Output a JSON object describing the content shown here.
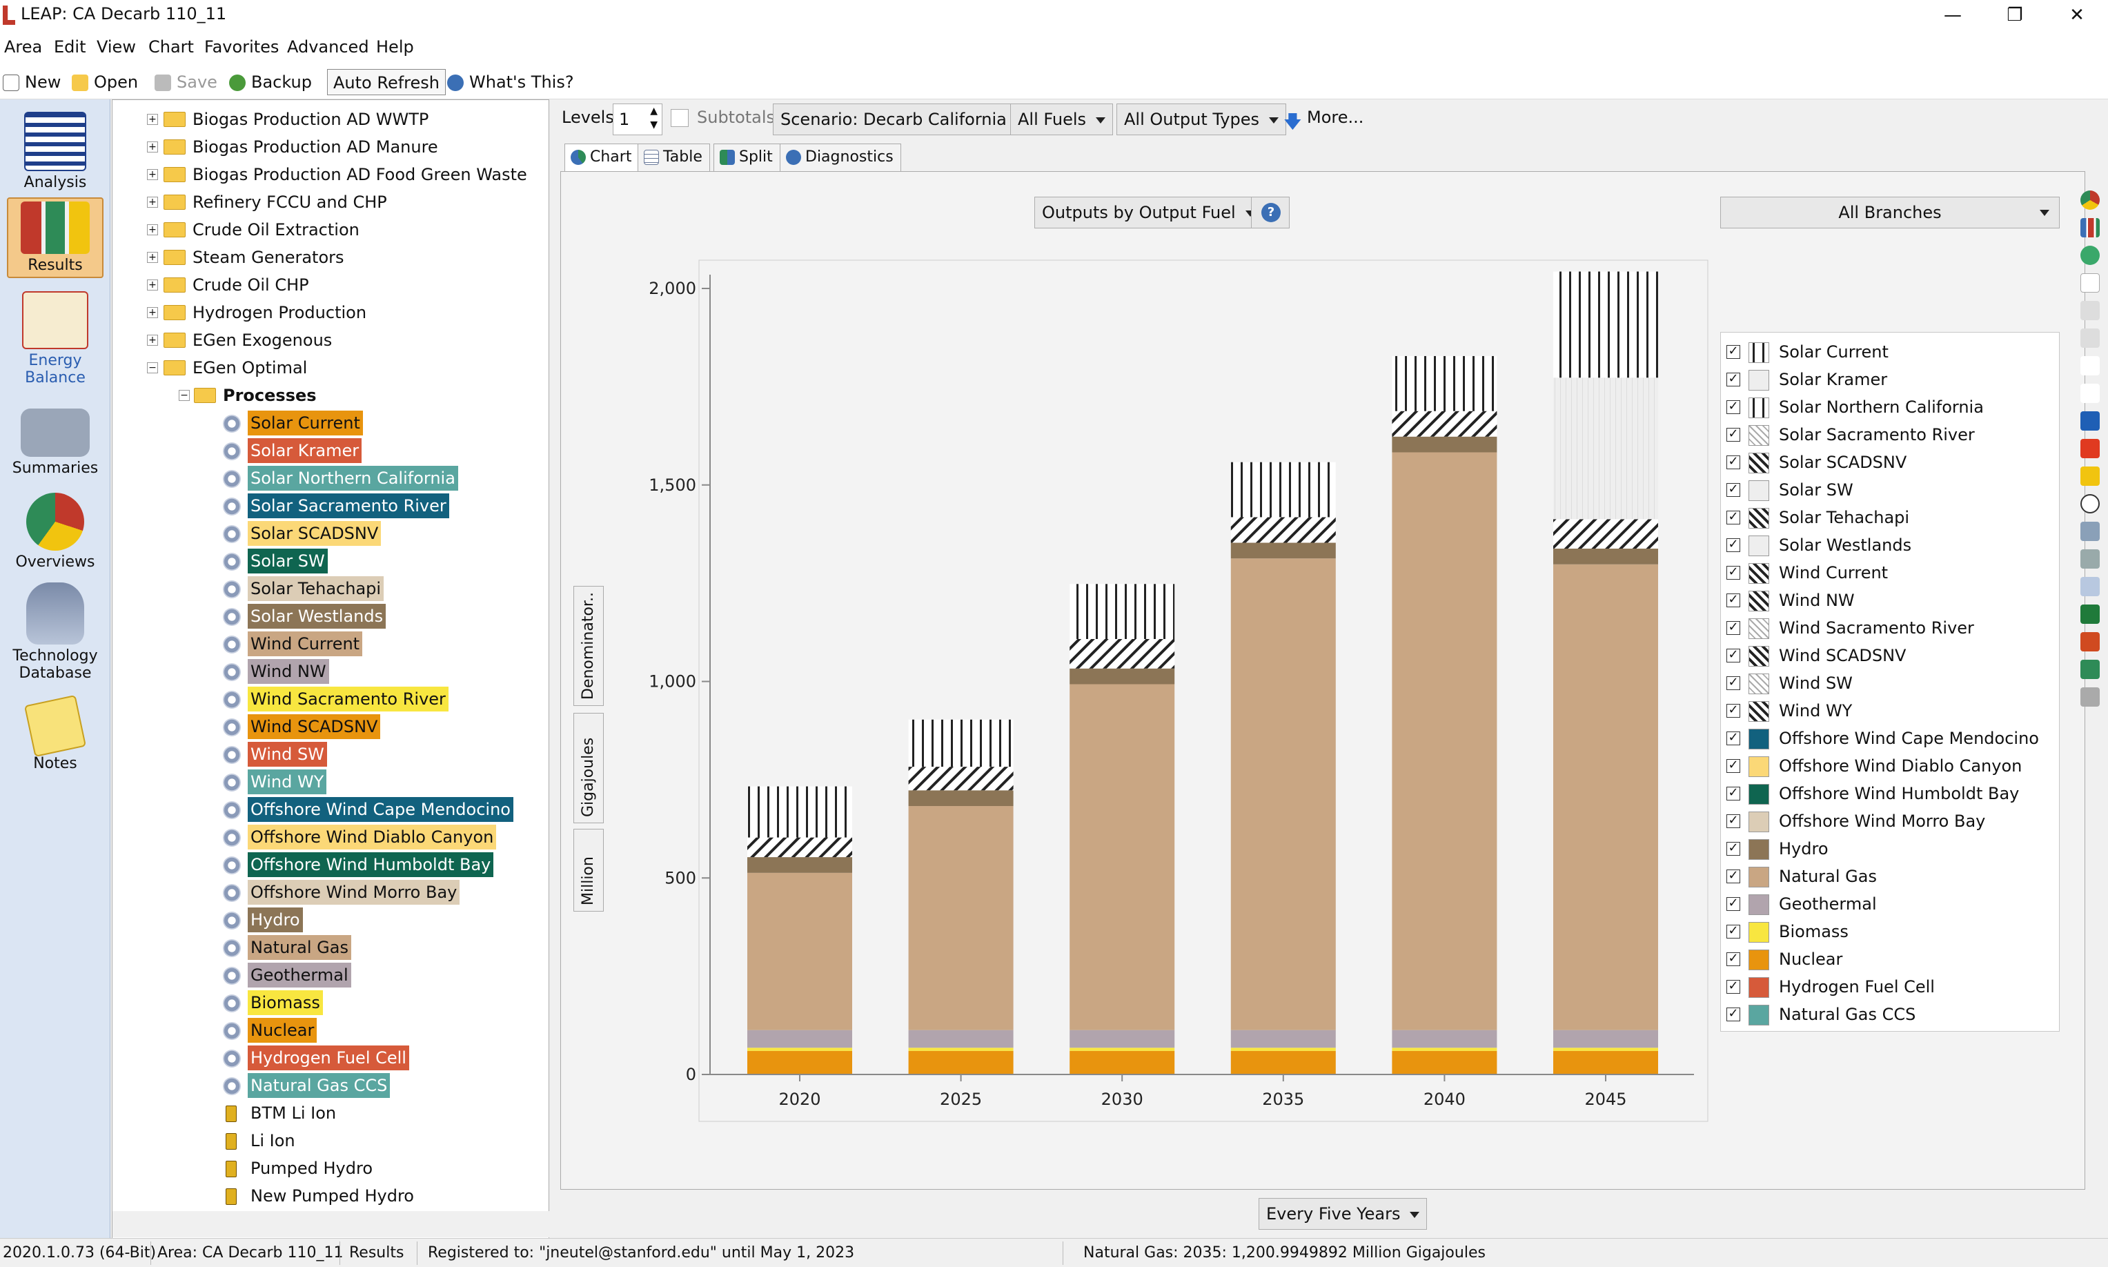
{
  "window": {
    "title": "LEAP: CA Decarb 110_11"
  },
  "menu": [
    "Area",
    "Edit",
    "View",
    "Chart",
    "Favorites",
    "Advanced",
    "Help"
  ],
  "toolbar": {
    "new": "New",
    "open": "Open",
    "save": "Save",
    "backup": "Backup",
    "auto_refresh": "Auto Refresh",
    "whats_this": "What's This?"
  },
  "nav": [
    "Analysis",
    "Results",
    "Energy Balance",
    "Summaries",
    "Overviews",
    "Technology Database",
    "Notes"
  ],
  "tree": {
    "folders": [
      "Biogas Production AD WWTP",
      "Biogas Production AD Manure",
      "Biogas Production AD Food Green Waste",
      "Refinery FCCU and CHP",
      "Crude Oil Extraction",
      "Steam Generators",
      "Crude Oil CHP",
      "Hydrogen Production",
      "EGen Exogenous",
      "EGen Optimal"
    ],
    "processes_label": "Processes",
    "processes": [
      {
        "label": "Solar Current",
        "color": "#e8940e"
      },
      {
        "label": "Solar Kramer",
        "color": "#d65a3a"
      },
      {
        "label": "Solar Northern California",
        "color": "#5aa6a0"
      },
      {
        "label": "Solar Sacramento River",
        "color": "#12617e"
      },
      {
        "label": "Solar SCADSNV",
        "color": "#fbd877"
      },
      {
        "label": "Solar SW",
        "color": "#0f6550"
      },
      {
        "label": "Solar Tehachapi",
        "color": "#dccdb6"
      },
      {
        "label": "Solar Westlands",
        "color": "#8c7556"
      },
      {
        "label": "Wind Current",
        "color": "#c9a683"
      },
      {
        "label": "Wind NW",
        "color": "#b1a4ad"
      },
      {
        "label": "Wind Sacramento River",
        "color": "#f8e640"
      },
      {
        "label": "Wind SCADSNV",
        "color": "#e8940e"
      },
      {
        "label": "Wind SW",
        "color": "#d65a3a"
      },
      {
        "label": "Wind WY",
        "color": "#5aa6a0"
      },
      {
        "label": "Offshore Wind Cape Mendocino",
        "color": "#12617e"
      },
      {
        "label": "Offshore Wind Diablo Canyon",
        "color": "#fbd877"
      },
      {
        "label": "Offshore Wind Humboldt Bay",
        "color": "#0f6550"
      },
      {
        "label": "Offshore Wind Morro Bay",
        "color": "#dccdb6"
      },
      {
        "label": "Hydro",
        "color": "#8c7556"
      },
      {
        "label": "Natural Gas",
        "color": "#c9a683"
      },
      {
        "label": "Geothermal",
        "color": "#b1a4ad"
      },
      {
        "label": "Biomass",
        "color": "#f8e640"
      },
      {
        "label": "Nuclear",
        "color": "#e8940e"
      },
      {
        "label": "Hydrogen Fuel Cell",
        "color": "#d65a3a"
      },
      {
        "label": "Natural Gas CCS",
        "color": "#5aa6a0"
      }
    ],
    "storage": [
      "BTM Li Ion",
      "Li Ion",
      "Pumped Hydro",
      "New Pumped Hydro"
    ]
  },
  "controls": {
    "levels_label": "Levels:",
    "levels_value": "1",
    "subtotals": "Subtotals",
    "scenario": "Scenario: Decarb California",
    "fuels": "All Fuels",
    "output_types": "All Output Types",
    "more": "More...",
    "outputs_by": "Outputs by Output Fuel",
    "branches": "All Branches",
    "interval": "Every Five Years"
  },
  "tabs": [
    "Chart",
    "Table",
    "Split",
    "Diagnostics"
  ],
  "vertical_tabs": [
    "Denominator..",
    "Gigajoules",
    "Million"
  ],
  "legend": [
    {
      "label": "Solar  Current",
      "pattern": "vlines"
    },
    {
      "label": "Solar  Kramer",
      "pattern": "light"
    },
    {
      "label": "Solar  Northern California",
      "pattern": "vlines"
    },
    {
      "label": "Solar  Sacramento River",
      "pattern": "diag"
    },
    {
      "label": "Solar  SCADSNV",
      "pattern": "diagdark"
    },
    {
      "label": "Solar  SW",
      "pattern": "light"
    },
    {
      "label": "Solar  Tehachapi",
      "pattern": "diagdark"
    },
    {
      "label": "Solar  Westlands",
      "pattern": "light"
    },
    {
      "label": "Wind  Current",
      "pattern": "diagdark"
    },
    {
      "label": "Wind  NW",
      "pattern": "diagdark"
    },
    {
      "label": "Wind  Sacramento River",
      "pattern": "diag"
    },
    {
      "label": "Wind  SCADSNV",
      "pattern": "diagdark"
    },
    {
      "label": "Wind  SW",
      "pattern": "diag"
    },
    {
      "label": "Wind  WY",
      "pattern": "diagdark"
    },
    {
      "label": "Offshore Wind Cape Mendocino",
      "color": "#12617e"
    },
    {
      "label": "Offshore Wind Diablo Canyon",
      "color": "#fbd877"
    },
    {
      "label": "Offshore Wind Humboldt Bay",
      "color": "#0f6550"
    },
    {
      "label": "Offshore Wind Morro Bay",
      "color": "#dccdb6"
    },
    {
      "label": "Hydro",
      "color": "#8c7556"
    },
    {
      "label": "Natural Gas",
      "color": "#c9a683"
    },
    {
      "label": "Geothermal",
      "color": "#b1a4ad"
    },
    {
      "label": "Biomass",
      "color": "#f8e640"
    },
    {
      "label": "Nuclear",
      "color": "#e8940e"
    },
    {
      "label": "Hydrogen Fuel Cell",
      "color": "#d65a3a"
    },
    {
      "label": "Natural Gas CCS",
      "color": "#5aa6a0"
    }
  ],
  "chart_data": {
    "type": "bar",
    "stacked": true,
    "categories": [
      "2020",
      "2025",
      "2030",
      "2035",
      "2040",
      "2045"
    ],
    "ylim": [
      0,
      2000
    ],
    "yticks": [
      0,
      500,
      1000,
      1500,
      2000
    ],
    "ytick_labels": [
      "0",
      "500",
      "1,000",
      "1,500",
      "2,000"
    ],
    "series": [
      {
        "name": "Nuclear",
        "values": [
          60,
          60,
          60,
          60,
          60,
          60
        ],
        "color": "#e8940e"
      },
      {
        "name": "Biomass",
        "values": [
          8,
          8,
          8,
          8,
          8,
          8
        ],
        "color": "#f8e640"
      },
      {
        "name": "Geothermal",
        "values": [
          45,
          45,
          45,
          45,
          45,
          45
        ],
        "color": "#b1a4ad"
      },
      {
        "name": "Natural Gas",
        "values": [
          400,
          570,
          880,
          1200,
          1470,
          1185
        ],
        "color": "#c9a683"
      },
      {
        "name": "Hydro",
        "values": [
          40,
          40,
          40,
          40,
          40,
          40
        ],
        "color": "#8c7556"
      },
      {
        "name": "Wind  Current",
        "values": [
          50,
          60,
          75,
          65,
          65,
          75
        ],
        "pattern": "diagdark"
      },
      {
        "name": "Solar  Kramer",
        "values": [
          0,
          0,
          0,
          0,
          0,
          360
        ],
        "pattern": "light"
      },
      {
        "name": "Solar  Current",
        "values": [
          130,
          120,
          140,
          140,
          140,
          270
        ],
        "pattern": "vlines"
      }
    ],
    "grid": false,
    "legend_position": "right"
  },
  "status": {
    "version": "2020.1.0.73 (64-Bit)",
    "area": "Area: CA Decarb 110_11",
    "view": "Results",
    "registered": "Registered to: \"jneutel@stanford.edu\" until May 1, 2023",
    "hover": "Natural Gas: 2035: 1,200.9949892 Million Gigajoules"
  }
}
